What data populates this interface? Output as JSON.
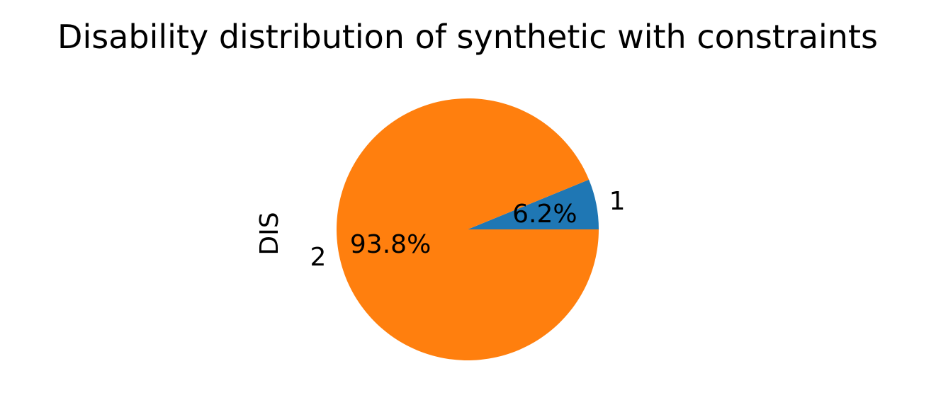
{
  "chart_data": {
    "type": "pie",
    "title": "Disability distribution of synthetic with constraints",
    "ylabel": "DIS",
    "slices": [
      {
        "label": "1",
        "value": 6.2,
        "pct_label": "6.2%",
        "color": "#1f77b4"
      },
      {
        "label": "2",
        "value": 93.8,
        "pct_label": "93.8%",
        "color": "#ff7f0e"
      }
    ]
  }
}
